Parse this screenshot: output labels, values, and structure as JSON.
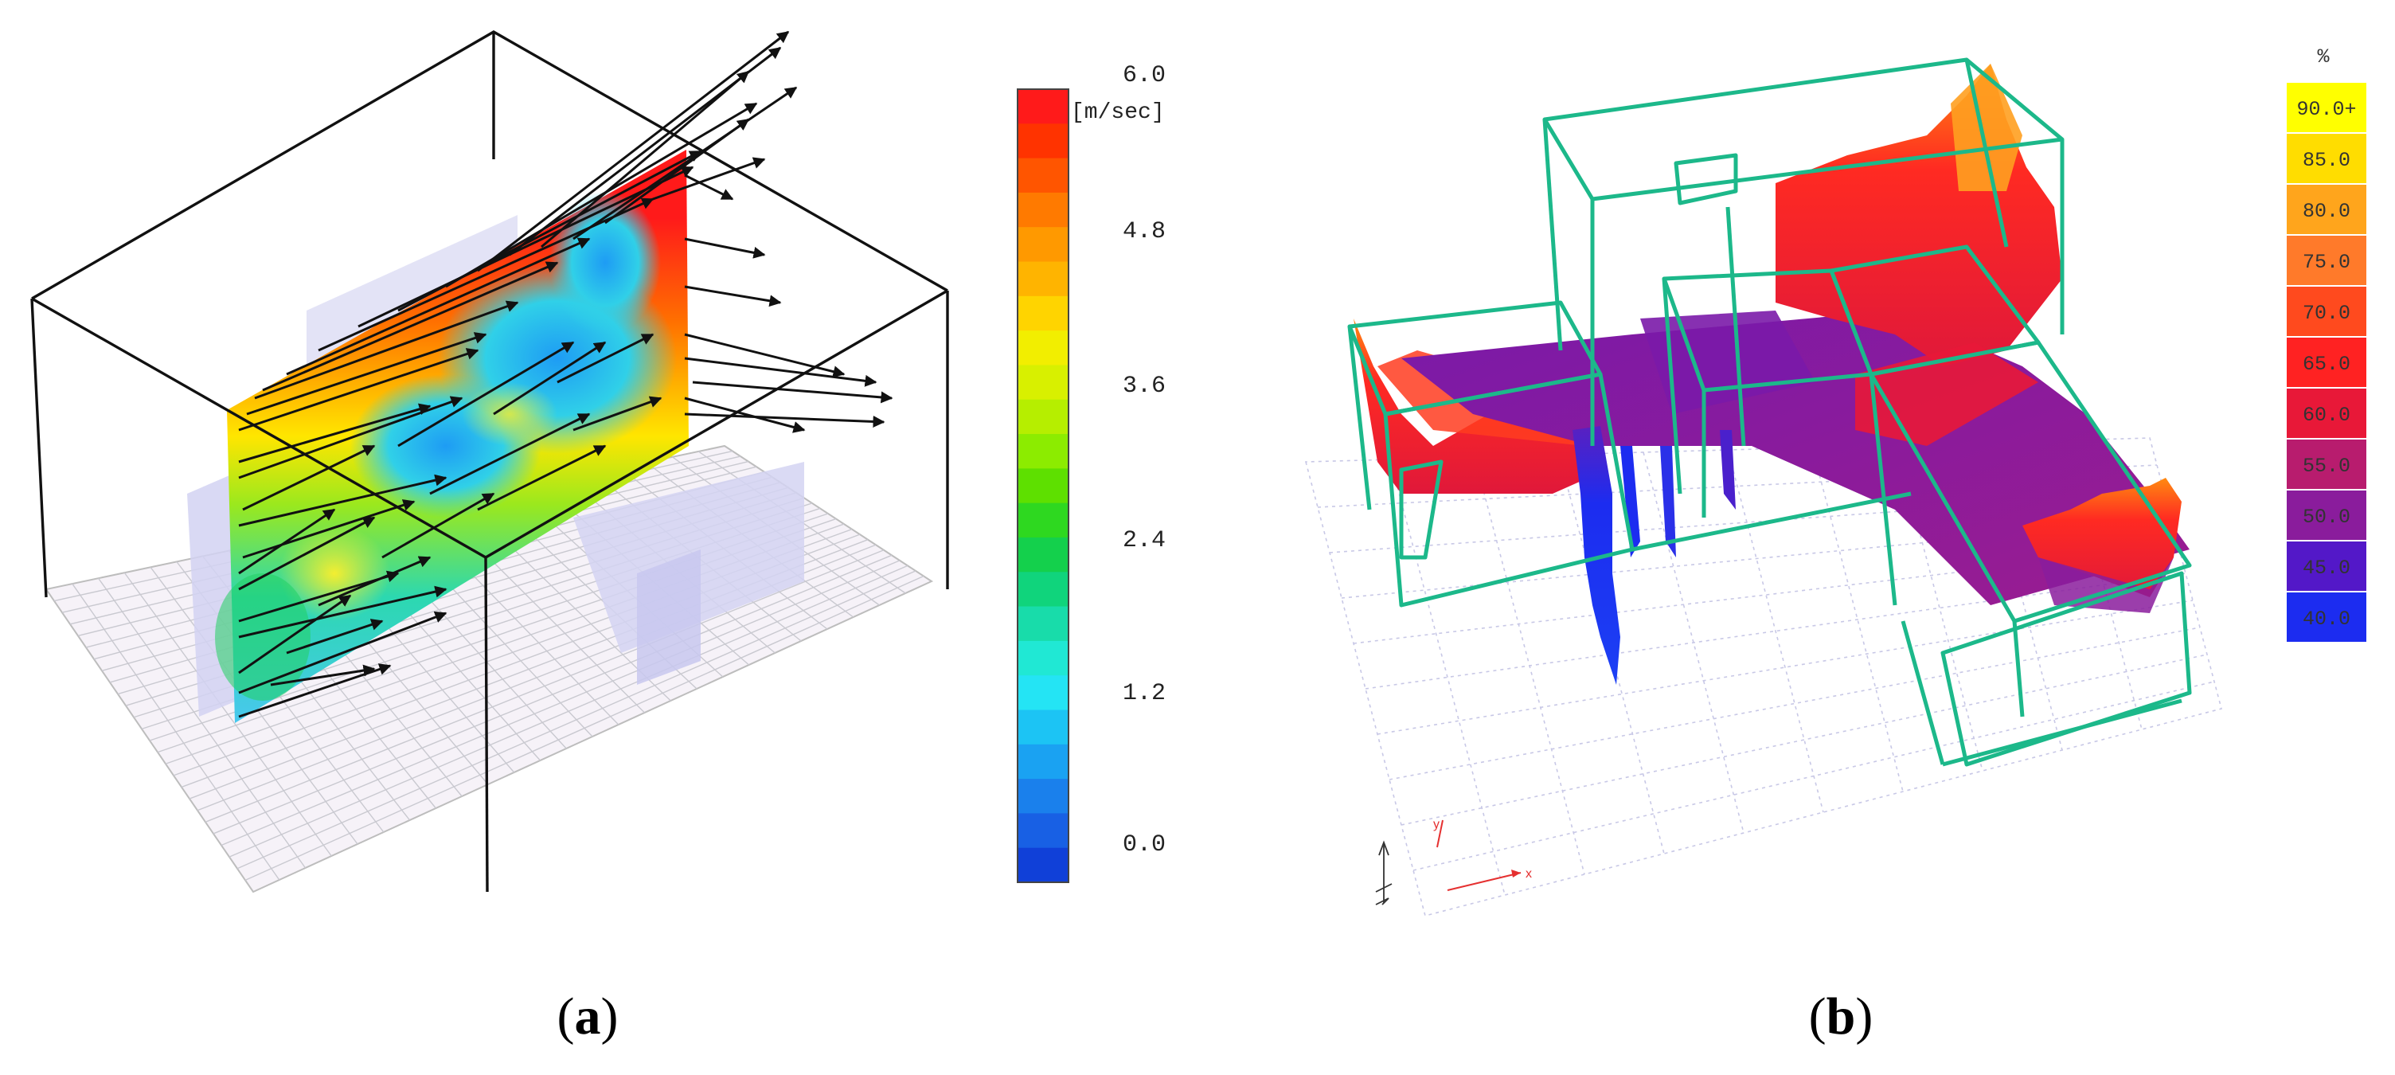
{
  "panel_a": {
    "caption": "(a)",
    "caption_letter": "a",
    "unit": "[m/sec]",
    "ticks": [
      "6.0",
      "4.8",
      "3.6",
      "2.4",
      "1.2",
      "0.0"
    ],
    "colors": [
      "#ff1a1a",
      "#ff3300",
      "#ff5500",
      "#ff7a00",
      "#ff9900",
      "#ffb400",
      "#ffd400",
      "#f2ee00",
      "#d8f000",
      "#b6ee00",
      "#8cec00",
      "#5ee000",
      "#2ed820",
      "#14d04c",
      "#10d47c",
      "#18dcaa",
      "#20e8d4",
      "#24e4f4",
      "#1cc4f4",
      "#1aa2f2",
      "#1a80ec",
      "#1860e4",
      "#1040d8"
    ]
  },
  "panel_b": {
    "caption": "(b)",
    "caption_letter": "b",
    "unit": "%",
    "legend": [
      {
        "label": "90.0+",
        "color": "#ffff00"
      },
      {
        "label": "85.0",
        "color": "#ffdd00"
      },
      {
        "label": "80.0",
        "color": "#ffa51c"
      },
      {
        "label": "75.0",
        "color": "#ff7a2a"
      },
      {
        "label": "70.0",
        "color": "#ff4a1e"
      },
      {
        "label": "65.0",
        "color": "#ff2222"
      },
      {
        "label": "60.0",
        "color": "#e81838"
      },
      {
        "label": "55.0",
        "color": "#b81c6e"
      },
      {
        "label": "50.0",
        "color": "#8a1c9c"
      },
      {
        "label": "45.0",
        "color": "#5318c8"
      },
      {
        "label": "40.0",
        "color": "#1c2cf0"
      }
    ],
    "axis_x": "x",
    "axis_y": "y"
  }
}
